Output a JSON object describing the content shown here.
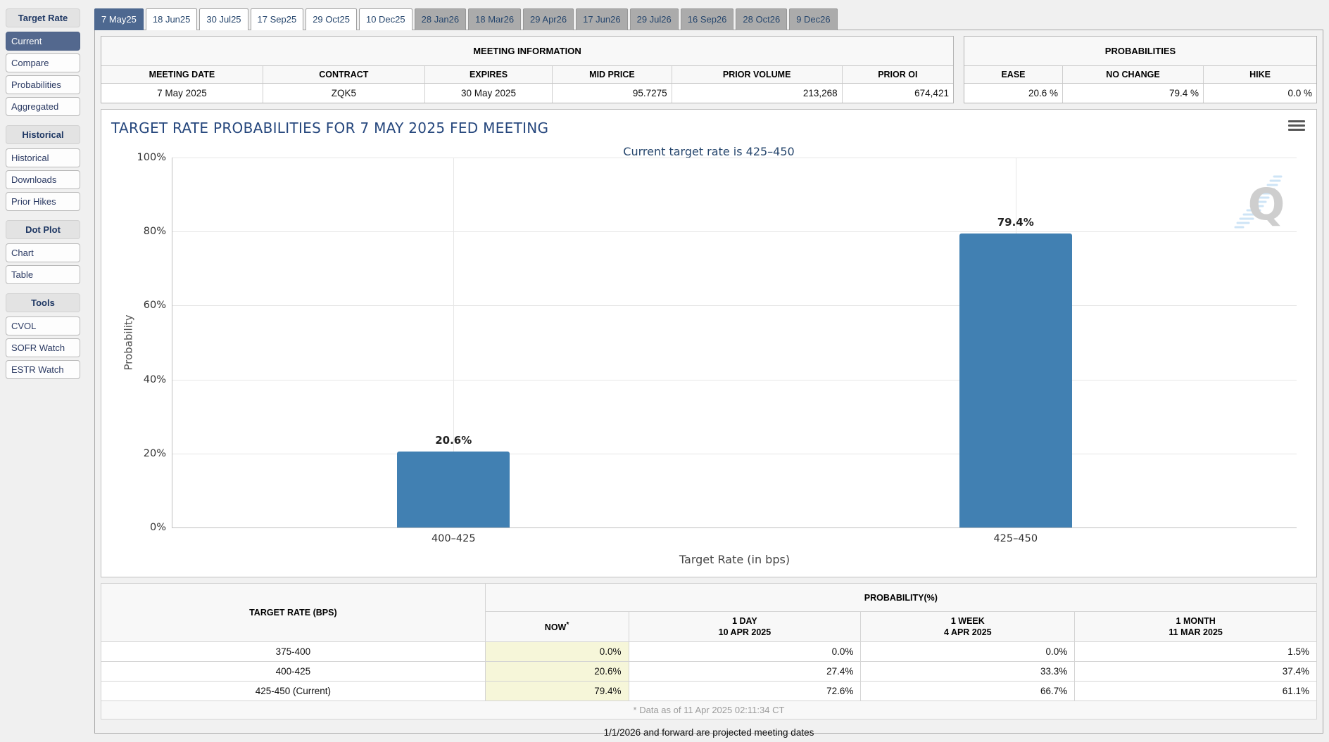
{
  "sidebar": {
    "sections": [
      {
        "header": "Target Rate",
        "items": [
          {
            "label": "Current",
            "selected": true
          },
          {
            "label": "Compare"
          },
          {
            "label": "Probabilities"
          },
          {
            "label": "Aggregated"
          }
        ]
      },
      {
        "header": "Historical",
        "items": [
          {
            "label": "Historical"
          },
          {
            "label": "Downloads"
          },
          {
            "label": "Prior Hikes"
          }
        ]
      },
      {
        "header": "Dot Plot",
        "items": [
          {
            "label": "Chart"
          },
          {
            "label": "Table"
          }
        ]
      },
      {
        "header": "Tools",
        "items": [
          {
            "label": "CVOL"
          },
          {
            "label": "SOFR Watch"
          },
          {
            "label": "ESTR Watch"
          }
        ]
      }
    ]
  },
  "tabs": [
    {
      "label": "7 May25",
      "state": "selected"
    },
    {
      "label": "18 Jun25",
      "state": "scheduled"
    },
    {
      "label": "30 Jul25",
      "state": "scheduled"
    },
    {
      "label": "17 Sep25",
      "state": "scheduled"
    },
    {
      "label": "29 Oct25",
      "state": "scheduled"
    },
    {
      "label": "10 Dec25",
      "state": "scheduled"
    },
    {
      "label": "28 Jan26",
      "state": "projected"
    },
    {
      "label": "18 Mar26",
      "state": "projected"
    },
    {
      "label": "29 Apr26",
      "state": "projected"
    },
    {
      "label": "17 Jun26",
      "state": "projected"
    },
    {
      "label": "29 Jul26",
      "state": "projected"
    },
    {
      "label": "16 Sep26",
      "state": "projected"
    },
    {
      "label": "28 Oct26",
      "state": "projected"
    },
    {
      "label": "9 Dec26",
      "state": "projected"
    }
  ],
  "meeting_info": {
    "title": "MEETING INFORMATION",
    "columns": [
      "MEETING DATE",
      "CONTRACT",
      "EXPIRES",
      "MID PRICE",
      "PRIOR VOLUME",
      "PRIOR OI"
    ],
    "row": {
      "meeting_date": "7 May 2025",
      "contract": "ZQK5",
      "expires": "30 May 2025",
      "mid_price": "95.7275",
      "prior_volume": "213,268",
      "prior_oi": "674,421"
    }
  },
  "probabilities_panel": {
    "title": "PROBABILITIES",
    "columns": [
      "EASE",
      "NO CHANGE",
      "HIKE"
    ],
    "row": {
      "ease": "20.6 %",
      "no_change": "79.4 %",
      "hike": "0.0 %"
    }
  },
  "chart_data": {
    "type": "bar",
    "title": "TARGET RATE PROBABILITIES FOR 7 MAY 2025 FED MEETING",
    "subtitle": "Current target rate is 425–450",
    "categories": [
      "400–425",
      "425–450"
    ],
    "values": [
      20.6,
      79.4
    ],
    "value_labels": [
      "20.6%",
      "79.4%"
    ],
    "xlabel": "Target Rate (in bps)",
    "ylabel": "Probability",
    "ylim": [
      0,
      100
    ],
    "yticks": [
      "0%",
      "20%",
      "40%",
      "60%",
      "80%",
      "100%"
    ],
    "grid": true,
    "legend": false,
    "bar_color": "#4180b2",
    "menu_icon": "hamburger-menu",
    "watermark_letter": "Q"
  },
  "bottom_table": {
    "col1_header": "TARGET RATE (BPS)",
    "group_header": "PROBABILITY(%)",
    "sub_headers": [
      {
        "line1": "NOW",
        "sup": "*",
        "line2": ""
      },
      {
        "line1": "1 DAY",
        "line2": "10 APR 2025"
      },
      {
        "line1": "1 WEEK",
        "line2": "4 APR 2025"
      },
      {
        "line1": "1 MONTH",
        "line2": "11 MAR 2025"
      }
    ],
    "rows": [
      {
        "rate": "375-400",
        "now": "0.0%",
        "day1": "0.0%",
        "week1": "0.0%",
        "month1": "1.5%"
      },
      {
        "rate": "400-425",
        "now": "20.6%",
        "day1": "27.4%",
        "week1": "33.3%",
        "month1": "37.4%"
      },
      {
        "rate": "425-450 (Current)",
        "now": "79.4%",
        "day1": "72.6%",
        "week1": "66.7%",
        "month1": "61.1%"
      }
    ],
    "footnote": "* Data as of 11 Apr 2025 02:11:34 CT"
  },
  "notes": {
    "projected": "1/1/2026 and forward are projected meeting dates"
  },
  "colors": {
    "accent": "#4d6890",
    "bar": "#4180b2",
    "now_highlight": "#f6f6d9",
    "navy": "#26466d"
  }
}
